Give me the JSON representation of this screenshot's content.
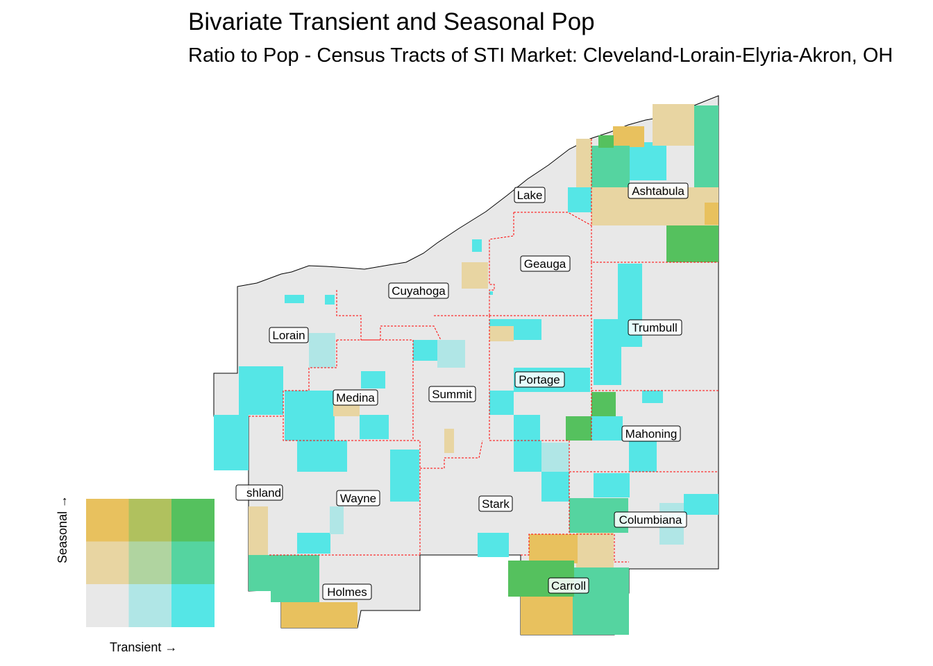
{
  "header": {
    "title": "Bivariate Transient and Seasonal Pop",
    "subtitle": "Ratio to Pop - Census Tracts of STI Market: Cleveland-Lorain-Elyria-Akron, OH"
  },
  "counties": [
    {
      "id": "lake",
      "label": "Lake"
    },
    {
      "id": "ashtabula",
      "label": "Ashtabula"
    },
    {
      "id": "geauga",
      "label": "Geauga"
    },
    {
      "id": "cuyahoga",
      "label": "Cuyahoga"
    },
    {
      "id": "lorain",
      "label": "Lorain"
    },
    {
      "id": "trumbull",
      "label": "Trumbull"
    },
    {
      "id": "portage",
      "label": "Portage"
    },
    {
      "id": "summit",
      "label": "Summit"
    },
    {
      "id": "medina",
      "label": "Medina"
    },
    {
      "id": "mahoning",
      "label": "Mahoning"
    },
    {
      "id": "ashland",
      "label": "shland"
    },
    {
      "id": "wayne",
      "label": "Wayne"
    },
    {
      "id": "stark",
      "label": "Stark"
    },
    {
      "id": "columbiana",
      "label": "Columbiana"
    },
    {
      "id": "holmes",
      "label": "Holmes"
    },
    {
      "id": "carroll",
      "label": "Carroll"
    }
  ],
  "legend": {
    "x_label": "Transient →",
    "y_label": "Seasonal →",
    "palette": {
      "low_low": "#e8e8e8",
      "mid_low": "#b0e6e6",
      "high_low": "#55e6e6",
      "low_mid": "#e8d5a2",
      "mid_mid": "#b0d4a0",
      "high_mid": "#55d4a0",
      "low_high": "#e8c15e",
      "mid_high": "#b0c15e",
      "high_high": "#55c15e"
    },
    "boundary_color": "#ff0000"
  }
}
